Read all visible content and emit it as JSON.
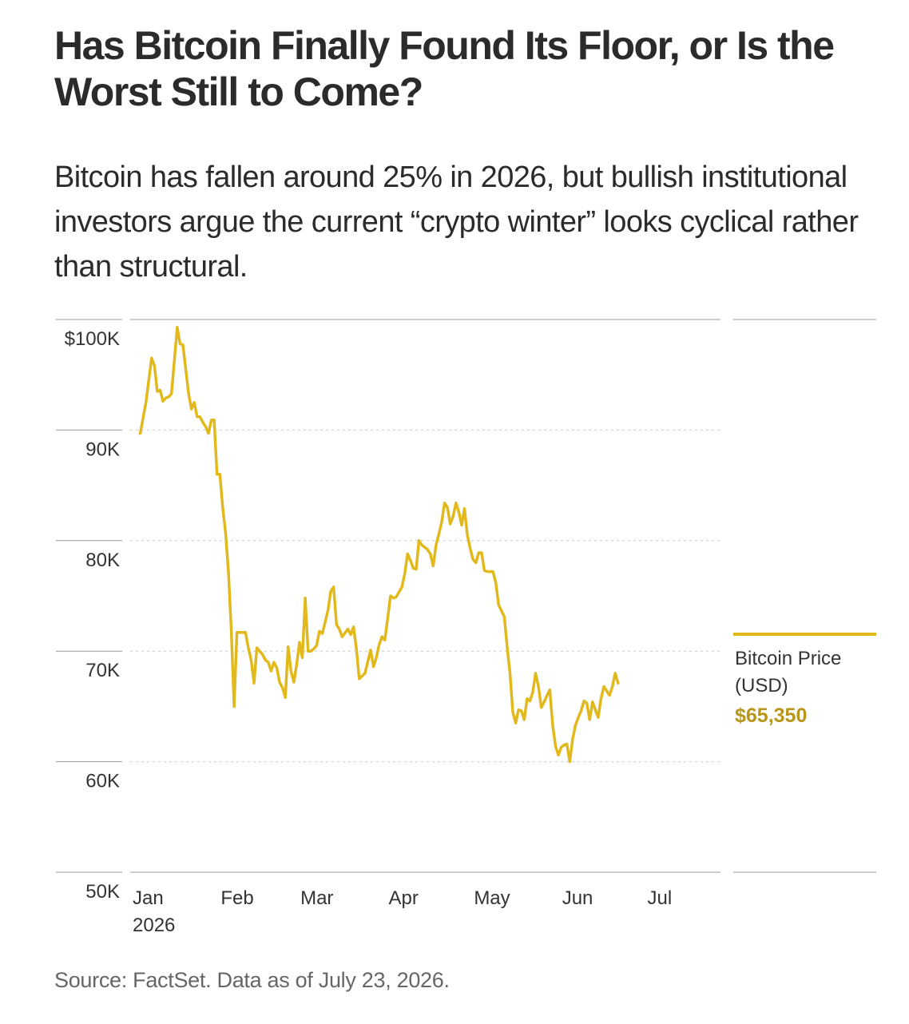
{
  "header": {
    "title": "Has Bitcoin Finally Found Its Floor, or Is the Worst Still to Come?",
    "subtitle": "Bitcoin has fallen around 25% in 2026, but bullish institutional investors argue the current “crypto winter” looks cyclical rather than structural."
  },
  "footer": {
    "source": "Source: FactSet. Data as of July 23, 2026."
  },
  "colors": {
    "line": "#e2b91c",
    "accent_text": "#b8961a",
    "grid": "#cccccc",
    "axis": "#999999"
  },
  "chart_data": {
    "type": "line",
    "title": "",
    "xlabel": "",
    "ylabel": "",
    "ylim": [
      50000,
      100000
    ],
    "yticks": [
      {
        "value": 100000,
        "label": "$100K"
      },
      {
        "value": 90000,
        "label": "90K"
      },
      {
        "value": 80000,
        "label": "80K"
      },
      {
        "value": 70000,
        "label": "70K"
      },
      {
        "value": 60000,
        "label": "60K"
      },
      {
        "value": 50000,
        "label": "50K"
      }
    ],
    "xlim": [
      "2026-01-01",
      "2026-07-25"
    ],
    "xticks": [
      {
        "date": "2026-01-01",
        "label": "Jan",
        "sublabel": "2026"
      },
      {
        "date": "2026-02-01",
        "label": "Feb"
      },
      {
        "date": "2026-03-01",
        "label": "Mar"
      },
      {
        "date": "2026-04-01",
        "label": "Apr"
      },
      {
        "date": "2026-05-01",
        "label": "May"
      },
      {
        "date": "2026-06-01",
        "label": "Jun"
      },
      {
        "date": "2026-07-01",
        "label": "Jul"
      }
    ],
    "grid": "horizontal dotted",
    "legend": "right",
    "series": [
      {
        "name": "Bitcoin Price\n(USD)",
        "latest_label": "$65,350",
        "points": [
          [
            "2026-01-02",
            89700
          ],
          [
            "2026-01-04",
            92500
          ],
          [
            "2026-01-06",
            96500
          ],
          [
            "2026-01-07",
            95800
          ],
          [
            "2026-01-08",
            93500
          ],
          [
            "2026-01-09",
            93600
          ],
          [
            "2026-01-10",
            92600
          ],
          [
            "2026-01-11",
            92900
          ],
          [
            "2026-01-12",
            93000
          ],
          [
            "2026-01-13",
            93300
          ],
          [
            "2026-01-15",
            99300
          ],
          [
            "2026-01-16",
            97800
          ],
          [
            "2026-01-17",
            97700
          ],
          [
            "2026-01-19",
            93300
          ],
          [
            "2026-01-20",
            91900
          ],
          [
            "2026-01-21",
            92500
          ],
          [
            "2026-01-22",
            91200
          ],
          [
            "2026-01-23",
            91200
          ],
          [
            "2026-01-24",
            90700
          ],
          [
            "2026-01-25",
            90300
          ],
          [
            "2026-01-26",
            89700
          ],
          [
            "2026-01-27",
            90900
          ],
          [
            "2026-01-28",
            90900
          ],
          [
            "2026-01-29",
            86000
          ],
          [
            "2026-01-30",
            86000
          ],
          [
            "2026-01-31",
            83000
          ],
          [
            "2026-02-01",
            80700
          ],
          [
            "2026-02-02",
            77200
          ],
          [
            "2026-02-03",
            72000
          ],
          [
            "2026-02-04",
            65000
          ],
          [
            "2026-02-05",
            71700
          ],
          [
            "2026-02-06",
            71700
          ],
          [
            "2026-02-08",
            71700
          ],
          [
            "2026-02-09",
            70300
          ],
          [
            "2026-02-10",
            69200
          ],
          [
            "2026-02-11",
            67100
          ],
          [
            "2026-02-12",
            70300
          ],
          [
            "2026-02-13",
            70000
          ],
          [
            "2026-02-14",
            69700
          ],
          [
            "2026-02-15",
            69200
          ],
          [
            "2026-02-16",
            69000
          ],
          [
            "2026-02-17",
            68200
          ],
          [
            "2026-02-18",
            69000
          ],
          [
            "2026-02-19",
            68500
          ],
          [
            "2026-02-20",
            67200
          ],
          [
            "2026-02-21",
            66700
          ],
          [
            "2026-02-22",
            65800
          ],
          [
            "2026-02-23",
            70400
          ],
          [
            "2026-02-24",
            68200
          ],
          [
            "2026-02-25",
            67200
          ],
          [
            "2026-02-26",
            68800
          ],
          [
            "2026-02-27",
            70800
          ],
          [
            "2026-02-28",
            69400
          ],
          [
            "2026-03-01",
            74800
          ],
          [
            "2026-03-02",
            70000
          ],
          [
            "2026-03-03",
            70000
          ],
          [
            "2026-03-04",
            70200
          ],
          [
            "2026-03-05",
            70500
          ],
          [
            "2026-03-06",
            71800
          ],
          [
            "2026-03-07",
            71600
          ],
          [
            "2026-03-08",
            72600
          ],
          [
            "2026-03-09",
            73700
          ],
          [
            "2026-03-10",
            75400
          ],
          [
            "2026-03-11",
            75800
          ],
          [
            "2026-03-12",
            72400
          ],
          [
            "2026-03-13",
            72000
          ],
          [
            "2026-03-14",
            71300
          ],
          [
            "2026-03-16",
            72000
          ],
          [
            "2026-03-17",
            71500
          ],
          [
            "2026-03-18",
            72200
          ],
          [
            "2026-03-19",
            70200
          ],
          [
            "2026-03-20",
            67500
          ],
          [
            "2026-03-22",
            68000
          ],
          [
            "2026-03-24",
            70100
          ],
          [
            "2026-03-25",
            68600
          ],
          [
            "2026-03-26",
            69400
          ],
          [
            "2026-03-27",
            70600
          ],
          [
            "2026-03-28",
            71300
          ],
          [
            "2026-03-29",
            71000
          ],
          [
            "2026-03-30",
            73000
          ],
          [
            "2026-03-31",
            75000
          ],
          [
            "2026-04-01",
            74800
          ],
          [
            "2026-04-02",
            74900
          ],
          [
            "2026-04-04",
            75800
          ],
          [
            "2026-04-05",
            77000
          ],
          [
            "2026-04-06",
            78800
          ],
          [
            "2026-04-07",
            78200
          ],
          [
            "2026-04-08",
            77500
          ],
          [
            "2026-04-09",
            77400
          ],
          [
            "2026-04-10",
            80000
          ],
          [
            "2026-04-11",
            79600
          ],
          [
            "2026-04-12",
            79400
          ],
          [
            "2026-04-13",
            79200
          ],
          [
            "2026-04-14",
            78800
          ],
          [
            "2026-04-15",
            77700
          ],
          [
            "2026-04-16",
            79600
          ],
          [
            "2026-04-17",
            80600
          ],
          [
            "2026-04-18",
            81700
          ],
          [
            "2026-04-19",
            83400
          ],
          [
            "2026-04-20",
            83000
          ],
          [
            "2026-04-21",
            81500
          ],
          [
            "2026-04-22",
            82200
          ],
          [
            "2026-04-23",
            83400
          ],
          [
            "2026-04-24",
            82600
          ],
          [
            "2026-04-25",
            81400
          ],
          [
            "2026-04-26",
            82900
          ],
          [
            "2026-04-27",
            80500
          ],
          [
            "2026-04-28",
            79300
          ],
          [
            "2026-04-29",
            78300
          ],
          [
            "2026-04-30",
            78000
          ],
          [
            "2026-05-01",
            78900
          ],
          [
            "2026-05-02",
            78900
          ],
          [
            "2026-05-03",
            77300
          ],
          [
            "2026-05-04",
            77200
          ],
          [
            "2026-05-06",
            77200
          ],
          [
            "2026-05-07",
            76200
          ],
          [
            "2026-05-08",
            74200
          ],
          [
            "2026-05-10",
            73100
          ],
          [
            "2026-05-11",
            70400
          ],
          [
            "2026-05-12",
            68000
          ],
          [
            "2026-05-13",
            64500
          ],
          [
            "2026-05-14",
            63500
          ],
          [
            "2026-05-15",
            64700
          ],
          [
            "2026-05-16",
            64600
          ],
          [
            "2026-05-17",
            63800
          ],
          [
            "2026-05-18",
            65700
          ],
          [
            "2026-05-19",
            65500
          ],
          [
            "2026-05-20",
            66300
          ],
          [
            "2026-05-21",
            68000
          ],
          [
            "2026-05-22",
            66800
          ],
          [
            "2026-05-23",
            64900
          ],
          [
            "2026-05-24",
            65400
          ],
          [
            "2026-05-25",
            66000
          ],
          [
            "2026-05-26",
            66500
          ],
          [
            "2026-05-27",
            63300
          ],
          [
            "2026-05-28",
            61400
          ],
          [
            "2026-05-29",
            60600
          ],
          [
            "2026-05-30",
            61300
          ],
          [
            "2026-05-31",
            61500
          ],
          [
            "2026-06-01",
            61600
          ],
          [
            "2026-06-02",
            60000
          ],
          [
            "2026-06-03",
            62000
          ],
          [
            "2026-06-04",
            63300
          ],
          [
            "2026-06-05",
            64000
          ],
          [
            "2026-06-06",
            64600
          ],
          [
            "2026-06-07",
            65500
          ],
          [
            "2026-06-08",
            65300
          ],
          [
            "2026-06-09",
            63800
          ],
          [
            "2026-06-10",
            65400
          ],
          [
            "2026-06-11",
            64700
          ],
          [
            "2026-06-12",
            64000
          ],
          [
            "2026-06-13",
            65700
          ],
          [
            "2026-06-14",
            66800
          ],
          [
            "2026-06-15",
            66400
          ],
          [
            "2026-06-16",
            66000
          ],
          [
            "2026-06-17",
            66800
          ],
          [
            "2026-06-18",
            68000
          ],
          [
            "2026-06-19",
            67100
          ]
        ]
      }
    ]
  }
}
